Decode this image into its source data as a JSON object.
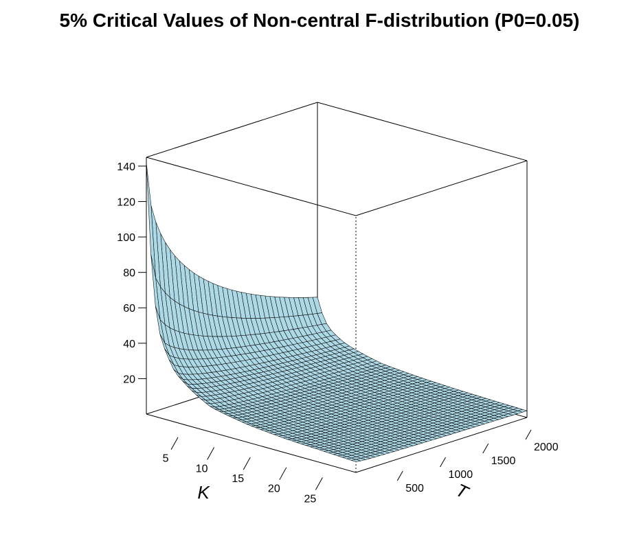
{
  "chart_data": {
    "type": "surface",
    "title": "5% Critical Values of Non-central F-distribution (P0=0.05)",
    "xlabel": "K",
    "ylabel": "T",
    "zlabel": "",
    "x_ticks": [
      "5",
      "10",
      "15",
      "20",
      "25"
    ],
    "y_ticks": [
      "500",
      "1000",
      "1500",
      "2000"
    ],
    "z_ticks": [
      "20",
      "40",
      "60",
      "80",
      "100",
      "120",
      "140"
    ],
    "xlim": [
      1,
      30
    ],
    "ylim": [
      0,
      2000
    ],
    "zlim": [
      0,
      145
    ],
    "surface": {
      "K_edge": [
        1,
        2,
        3,
        5,
        10,
        15,
        20,
        25,
        30
      ],
      "z_at_T_min": [
        142,
        70,
        45,
        28,
        14,
        10,
        8,
        7,
        6
      ],
      "z_at_T_max": [
        35,
        23,
        18,
        13,
        7.6,
        5.9,
        4.9,
        4.3,
        3.8
      ]
    },
    "colors": {
      "surface_fill": "#add8e6",
      "surface_line": "#000000",
      "box": "#000000"
    }
  }
}
